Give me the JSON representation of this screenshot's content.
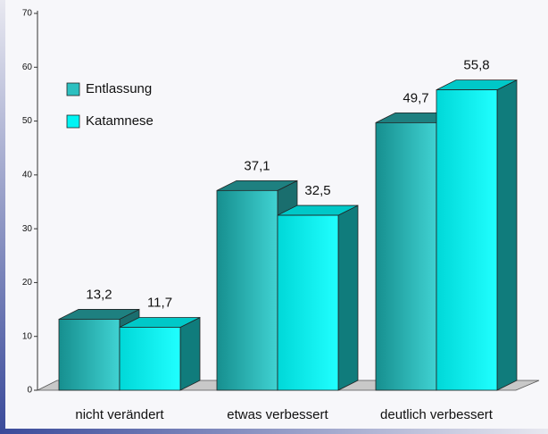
{
  "chart_data": {
    "type": "bar3d",
    "categories": [
      "nicht verändert",
      "etwas verbessert",
      "deutlich verbessert"
    ],
    "series": [
      {
        "name": "Entlassung",
        "color": "#2cc0c0",
        "values": [
          13.2,
          37.1,
          49.7
        ],
        "value_labels": [
          "13,2",
          "37,1",
          "49,7"
        ]
      },
      {
        "name": "Katamnese",
        "color": "#00f4f4",
        "values": [
          11.7,
          32.5,
          55.8
        ],
        "value_labels": [
          "11,7",
          "32,5",
          "55,8"
        ]
      }
    ],
    "ylim": [
      0,
      70
    ],
    "yticks": [
      0,
      10,
      20,
      30,
      40,
      50,
      60,
      70
    ],
    "legend": "upper left"
  }
}
